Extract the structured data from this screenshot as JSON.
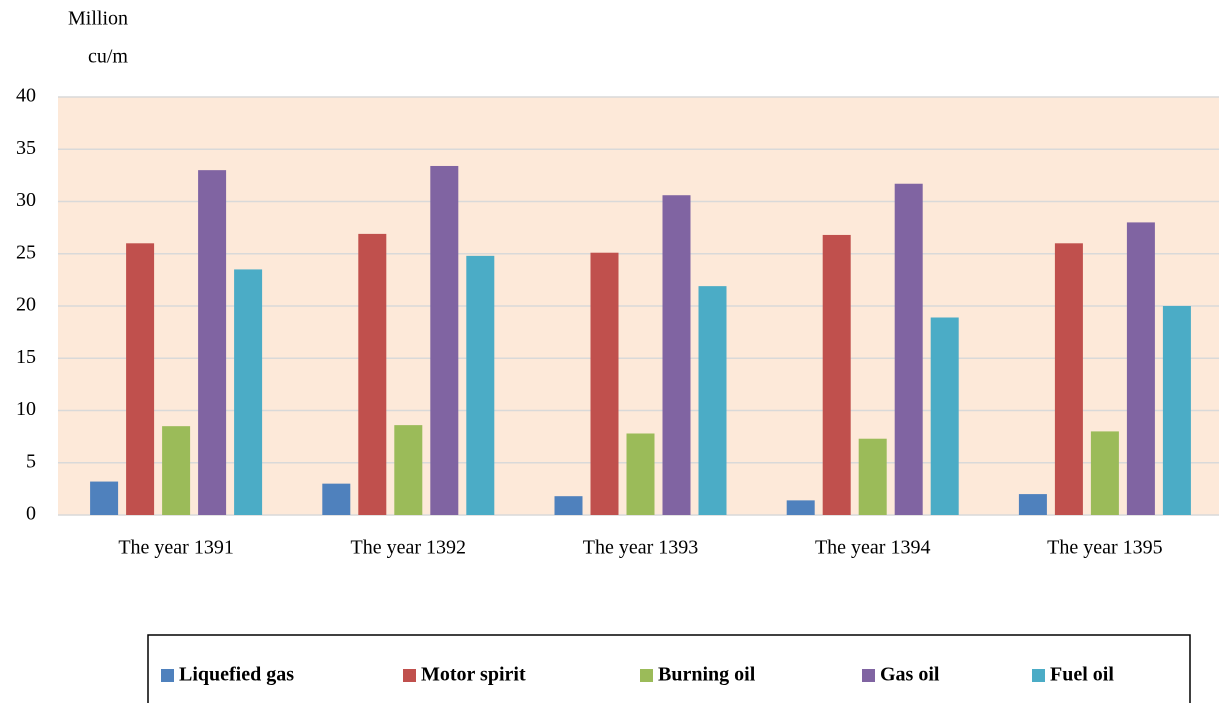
{
  "chart_data": {
    "type": "bar",
    "ylabel": [
      "Million",
      "cu/m"
    ],
    "categories": [
      "The year 1391",
      "The year 1392",
      "The year 1393",
      "The year 1394",
      "The year 1395"
    ],
    "series": [
      {
        "name": "Liquefied gas",
        "color": "#4f81bd",
        "values": [
          3.2,
          3.0,
          1.8,
          1.4,
          2.0
        ]
      },
      {
        "name": "Motor spirit",
        "color": "#c0504d",
        "values": [
          26,
          26.9,
          25.1,
          26.8,
          26
        ]
      },
      {
        "name": "Burning oil",
        "color": "#9bbb59",
        "values": [
          8.5,
          8.6,
          7.8,
          7.3,
          8.0
        ]
      },
      {
        "name": "Gas oil",
        "color": "#8064a2",
        "values": [
          33,
          33.4,
          30.6,
          31.7,
          28
        ]
      },
      {
        "name": "Fuel oil",
        "color": "#4bacc6",
        "values": [
          23.5,
          24.8,
          21.9,
          18.9,
          20
        ]
      }
    ],
    "ylim": [
      0,
      40
    ],
    "yticks": [
      0,
      5,
      10,
      15,
      20,
      25,
      30,
      35,
      40
    ],
    "grid": true,
    "plot_background": "#fde9d9",
    "legend": "bottom"
  }
}
